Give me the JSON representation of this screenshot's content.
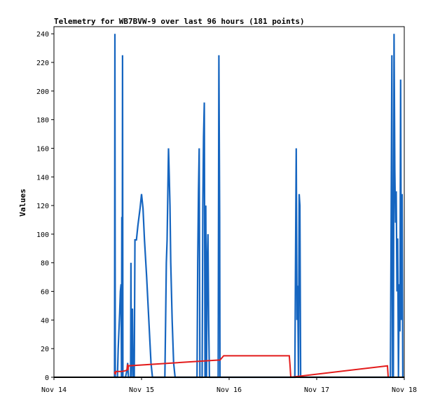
{
  "chart_data": {
    "type": "line",
    "title": "Telemetry for WB7BVW-9 over last 96 hours (181 points)",
    "xlabel": "",
    "ylabel": "Values",
    "x_ticks": [
      "Nov 14",
      "Nov 15",
      "Nov 16",
      "Nov 17",
      "Nov 18"
    ],
    "xlim": [
      0,
      96
    ],
    "ylim": [
      0,
      245
    ],
    "y_ticks": [
      0,
      20,
      40,
      60,
      80,
      100,
      120,
      140,
      160,
      180,
      200,
      220,
      240
    ],
    "grid": false,
    "colors": {
      "blue": "#1565c0",
      "red": "#e31c1c",
      "black": "#000000",
      "axis": "#000000"
    },
    "series": [
      {
        "color": "#1565c0",
        "points": [
          [
            16.6,
            0
          ],
          [
            16.7,
            240
          ],
          [
            16.8,
            0
          ],
          [
            17.4,
            0
          ],
          [
            17.6,
            20
          ],
          [
            18.0,
            45
          ],
          [
            18.2,
            60
          ],
          [
            18.4,
            65
          ],
          [
            18.5,
            0
          ],
          [
            18.6,
            112
          ],
          [
            18.7,
            0
          ],
          [
            18.8,
            225
          ],
          [
            18.9,
            0
          ],
          [
            19.6,
            0
          ],
          [
            20.0,
            5
          ],
          [
            20.2,
            10
          ],
          [
            20.4,
            0
          ],
          [
            21.0,
            0
          ],
          [
            21.1,
            80
          ],
          [
            21.2,
            0
          ],
          [
            21.5,
            48
          ],
          [
            21.7,
            0
          ],
          [
            22.0,
            0
          ],
          [
            22.2,
            96
          ],
          [
            22.6,
            96
          ],
          [
            23.0,
            106
          ],
          [
            23.6,
            118
          ],
          [
            24.0,
            128
          ],
          [
            24.4,
            118
          ],
          [
            24.8,
            96
          ],
          [
            25.4,
            70
          ],
          [
            26.0,
            40
          ],
          [
            26.6,
            10
          ],
          [
            27.0,
            0
          ],
          [
            30.0,
            0
          ],
          [
            30.4,
            0
          ],
          [
            30.6,
            40
          ],
          [
            30.8,
            80
          ],
          [
            31.0,
            96
          ],
          [
            31.2,
            128
          ],
          [
            31.4,
            160
          ],
          [
            31.6,
            140
          ],
          [
            31.8,
            120
          ],
          [
            32.0,
            80
          ],
          [
            32.4,
            40
          ],
          [
            32.8,
            10
          ],
          [
            33.2,
            0
          ],
          [
            39.2,
            0
          ],
          [
            39.4,
            80
          ],
          [
            39.6,
            130
          ],
          [
            39.8,
            160
          ],
          [
            40.0,
            0
          ],
          [
            40.6,
            0
          ],
          [
            40.8,
            120
          ],
          [
            41.0,
            168
          ],
          [
            41.2,
            192
          ],
          [
            41.4,
            0
          ],
          [
            41.6,
            120
          ],
          [
            41.8,
            0
          ],
          [
            42.0,
            80
          ],
          [
            42.2,
            100
          ],
          [
            42.4,
            40
          ],
          [
            42.6,
            0
          ],
          [
            43.0,
            0
          ],
          [
            45.0,
            0
          ],
          [
            45.2,
            225
          ],
          [
            45.4,
            112
          ],
          [
            45.5,
            0
          ],
          [
            66.0,
            0
          ],
          [
            66.2,
            80
          ],
          [
            66.4,
            160
          ],
          [
            66.6,
            40
          ],
          [
            66.8,
            64
          ],
          [
            67.0,
            0
          ],
          [
            67.2,
            128
          ],
          [
            67.4,
            120
          ],
          [
            67.6,
            0
          ],
          [
            92.2,
            0
          ],
          [
            92.4,
            112
          ],
          [
            92.6,
            225
          ],
          [
            92.8,
            0
          ],
          [
            93.0,
            0
          ],
          [
            93.2,
            240
          ],
          [
            93.4,
            145
          ],
          [
            93.6,
            108
          ],
          [
            93.8,
            130
          ],
          [
            94.0,
            60
          ],
          [
            94.2,
            97
          ],
          [
            94.4,
            0
          ],
          [
            94.6,
            65
          ],
          [
            94.8,
            32
          ],
          [
            95.0,
            208
          ],
          [
            95.2,
            40
          ],
          [
            95.4,
            128
          ],
          [
            95.6,
            0
          ],
          [
            96.0,
            0
          ]
        ]
      },
      {
        "color": "#e31c1c",
        "points": [
          [
            16.6,
            4
          ],
          [
            16.8,
            2
          ],
          [
            17.0,
            4
          ],
          [
            18.5,
            4
          ],
          [
            19.5,
            4.5
          ],
          [
            20.0,
            5
          ],
          [
            20.2,
            9
          ],
          [
            20.3,
            5
          ],
          [
            20.4,
            8
          ],
          [
            45.0,
            12
          ],
          [
            45.5,
            12
          ],
          [
            46.5,
            15
          ],
          [
            52.0,
            15
          ],
          [
            58.0,
            15
          ],
          [
            64.0,
            15
          ],
          [
            64.5,
            15
          ],
          [
            64.7,
            8
          ],
          [
            64.9,
            0
          ],
          [
            91.4,
            8
          ],
          [
            91.6,
            0
          ]
        ]
      },
      {
        "color": "#000000",
        "points": [
          [
            0,
            0
          ],
          [
            96,
            0
          ]
        ]
      }
    ]
  }
}
